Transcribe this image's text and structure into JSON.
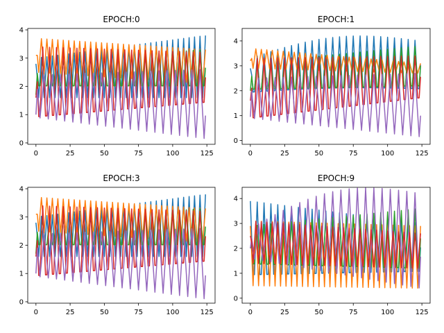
{
  "chart_data": [
    {
      "type": "line",
      "title": "EPOCH:0",
      "xlim": [
        -6,
        131
      ],
      "ylim": [
        -0.05,
        4.05
      ],
      "x_ticks": [
        0,
        25,
        50,
        75,
        100,
        125
      ],
      "y_ticks": [
        0,
        1,
        2,
        3,
        4
      ],
      "x_range": [
        0,
        124
      ],
      "series": [
        {
          "color": "#1f77b4",
          "start": 2.8,
          "hi0": 3.0,
          "hi1": 3.8,
          "lo0": 1.6,
          "lo1": 1.6,
          "period": 4
        },
        {
          "color": "#ff7f0e",
          "start": 3.1,
          "hi0": 3.7,
          "hi1": 3.3,
          "lo0": 2.5,
          "lo1": 2.1,
          "period": 4
        },
        {
          "color": "#2ca02c",
          "start": 1.7,
          "hi0": 2.9,
          "hi1": 3.3,
          "lo0": 1.8,
          "lo1": 1.7,
          "period": 5
        },
        {
          "color": "#d62728",
          "start": 1.6,
          "hi0": 3.4,
          "hi1": 3.2,
          "lo0": 0.3,
          "lo1": 1.0,
          "period": 5
        },
        {
          "color": "#9467bd",
          "start": 1.0,
          "hi0": 2.4,
          "hi1": 2.6,
          "lo0": 0.9,
          "lo1": 0.15,
          "period": 6
        }
      ]
    },
    {
      "type": "line",
      "title": "EPOCH:1",
      "xlim": [
        -6,
        131
      ],
      "ylim": [
        -0.15,
        4.5
      ],
      "x_ticks": [
        0,
        25,
        50,
        75,
        100,
        125
      ],
      "y_ticks": [
        0,
        1,
        2,
        3,
        4
      ],
      "x_range": [
        0,
        124
      ],
      "series": [
        {
          "color": "#1f77b4",
          "start": 2.9,
          "hi0": 3.3,
          "hi1": 4.0,
          "lo0": 1.6,
          "lo1": 1.6,
          "period": 5,
          "bump": 0.5
        },
        {
          "color": "#ff7f0e",
          "start": 3.2,
          "hi0": 3.7,
          "hi1": 3.1,
          "lo0": 2.9,
          "lo1": 2.7,
          "period": 4
        },
        {
          "color": "#2ca02c",
          "start": 2.0,
          "hi0": 3.1,
          "hi1": 3.8,
          "lo0": 1.8,
          "lo1": 1.8,
          "period": 5
        },
        {
          "color": "#d62728",
          "start": 1.6,
          "hi0": 3.3,
          "hi1": 3.4,
          "lo0": 0.3,
          "lo1": 1.3,
          "period": 5
        },
        {
          "color": "#9467bd",
          "start": 0.95,
          "hi0": 2.5,
          "hi1": 2.7,
          "lo0": 0.9,
          "lo1": 0.15,
          "period": 6
        }
      ]
    },
    {
      "type": "line",
      "title": "EPOCH:3",
      "xlim": [
        -6,
        131
      ],
      "ylim": [
        -0.05,
        4.05
      ],
      "x_ticks": [
        0,
        25,
        50,
        75,
        100,
        125
      ],
      "y_ticks": [
        0,
        1,
        2,
        3,
        4
      ],
      "x_range": [
        0,
        124
      ],
      "series": [
        {
          "color": "#1f77b4",
          "start": 2.8,
          "hi0": 3.0,
          "hi1": 3.8,
          "lo0": 1.6,
          "lo1": 1.6,
          "period": 4
        },
        {
          "color": "#ff7f0e",
          "start": 3.1,
          "hi0": 3.7,
          "hi1": 3.3,
          "lo0": 2.5,
          "lo1": 2.1,
          "period": 4
        },
        {
          "color": "#2ca02c",
          "start": 1.7,
          "hi0": 2.9,
          "hi1": 3.3,
          "lo0": 1.8,
          "lo1": 1.7,
          "period": 5
        },
        {
          "color": "#d62728",
          "start": 1.6,
          "hi0": 3.4,
          "hi1": 3.2,
          "lo0": 0.3,
          "lo1": 1.0,
          "period": 5
        },
        {
          "color": "#9467bd",
          "start": 1.0,
          "hi0": 2.4,
          "hi1": 2.6,
          "lo0": 0.9,
          "lo1": 0.1,
          "period": 6
        }
      ]
    },
    {
      "type": "line",
      "title": "EPOCH:9",
      "xlim": [
        -6,
        131
      ],
      "ylim": [
        -0.2,
        4.45
      ],
      "x_ticks": [
        0,
        25,
        50,
        75,
        100,
        125
      ],
      "y_ticks": [
        0,
        1,
        2,
        3,
        4
      ],
      "x_range": [
        0,
        124
      ],
      "series": [
        {
          "color": "#1f77b4",
          "start": 3.9,
          "hi0": 3.9,
          "hi1": 3.0,
          "lo0": 0.2,
          "lo1": 0.6,
          "period": 5
        },
        {
          "color": "#ff7f0e",
          "start": 2.9,
          "hi0": 3.1,
          "hi1": 2.9,
          "lo0": 0.5,
          "lo1": 0.4,
          "period": 4
        },
        {
          "color": "#2ca02c",
          "start": 2.0,
          "hi0": 2.9,
          "hi1": 3.6,
          "lo0": 1.0,
          "lo1": 0.6,
          "period": 5
        },
        {
          "color": "#9467bd",
          "start": 2.0,
          "hi0": 2.8,
          "hi1": 4.2,
          "lo0": 1.6,
          "lo1": 0.4,
          "period": 6,
          "bump": 0.8
        },
        {
          "color": "#d62728",
          "start": 2.5,
          "hi0": 3.1,
          "hi1": 2.6,
          "lo0": 1.4,
          "lo1": 1.2,
          "period": 4
        }
      ]
    }
  ]
}
